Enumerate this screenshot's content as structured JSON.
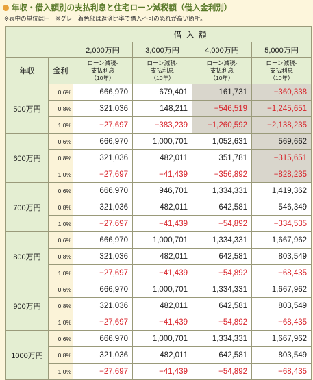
{
  "title": "年収・借入額別の支払利息と住宅ローン減税額（借入金利別）",
  "note": "※表中の単位は円　※グレー着色部は返済比率で借入不可の恐れが高い箇所。",
  "header": {
    "loan_label": "借入額",
    "income_label": "年収",
    "rate_label": "金利",
    "amounts": [
      "2,000万円",
      "3,000万円",
      "4,000万円",
      "5,000万円"
    ],
    "sub_label_1": "ローン減税-",
    "sub_label_2": "支払利息",
    "sub_label_3": "（10年）"
  },
  "rows": [
    {
      "income": "500万円",
      "lines": [
        {
          "rate": "0.6%",
          "values": [
            "666,970",
            "679,401",
            "161,731",
            "−360,338"
          ],
          "neg": [
            false,
            false,
            false,
            true
          ],
          "gray": [
            false,
            false,
            true,
            true
          ]
        },
        {
          "rate": "0.8%",
          "values": [
            "321,036",
            "148,211",
            "−546,519",
            "−1,245,651"
          ],
          "neg": [
            false,
            false,
            true,
            true
          ],
          "gray": [
            false,
            false,
            true,
            true
          ]
        },
        {
          "rate": "1.0%",
          "values": [
            "−27,697",
            "−383,239",
            "−1,260,592",
            "−2,138,235"
          ],
          "neg": [
            true,
            true,
            true,
            true
          ],
          "gray": [
            false,
            false,
            true,
            true
          ]
        }
      ]
    },
    {
      "income": "600万円",
      "lines": [
        {
          "rate": "0.6%",
          "values": [
            "666,970",
            "1,000,701",
            "1,052,631",
            "569,662"
          ],
          "neg": [
            false,
            false,
            false,
            false
          ],
          "gray": [
            false,
            false,
            false,
            true
          ]
        },
        {
          "rate": "0.8%",
          "values": [
            "321,036",
            "482,011",
            "351,781",
            "−315,651"
          ],
          "neg": [
            false,
            false,
            false,
            true
          ],
          "gray": [
            false,
            false,
            false,
            true
          ]
        },
        {
          "rate": "1.0%",
          "values": [
            "−27,697",
            "−41,439",
            "−356,892",
            "−828,235"
          ],
          "neg": [
            true,
            true,
            true,
            true
          ],
          "gray": [
            false,
            false,
            false,
            true
          ]
        }
      ]
    },
    {
      "income": "700万円",
      "lines": [
        {
          "rate": "0.6%",
          "values": [
            "666,970",
            "946,701",
            "1,334,331",
            "1,419,362"
          ],
          "neg": [
            false,
            false,
            false,
            false
          ],
          "gray": [
            false,
            false,
            false,
            false
          ]
        },
        {
          "rate": "0.8%",
          "values": [
            "321,036",
            "482,011",
            "642,581",
            "546,349"
          ],
          "neg": [
            false,
            false,
            false,
            false
          ],
          "gray": [
            false,
            false,
            false,
            false
          ]
        },
        {
          "rate": "1.0%",
          "values": [
            "−27,697",
            "−41,439",
            "−54,892",
            "−334,535"
          ],
          "neg": [
            true,
            true,
            true,
            true
          ],
          "gray": [
            false,
            false,
            false,
            false
          ]
        }
      ]
    },
    {
      "income": "800万円",
      "lines": [
        {
          "rate": "0.6%",
          "values": [
            "666,970",
            "1,000,701",
            "1,334,331",
            "1,667,962"
          ],
          "neg": [
            false,
            false,
            false,
            false
          ],
          "gray": [
            false,
            false,
            false,
            false
          ]
        },
        {
          "rate": "0.8%",
          "values": [
            "321,036",
            "482,011",
            "642,581",
            "803,549"
          ],
          "neg": [
            false,
            false,
            false,
            false
          ],
          "gray": [
            false,
            false,
            false,
            false
          ]
        },
        {
          "rate": "1.0%",
          "values": [
            "−27,697",
            "−41,439",
            "−54,892",
            "−68,435"
          ],
          "neg": [
            true,
            true,
            true,
            true
          ],
          "gray": [
            false,
            false,
            false,
            false
          ]
        }
      ]
    },
    {
      "income": "900万円",
      "lines": [
        {
          "rate": "0.6%",
          "values": [
            "666,970",
            "1,000,701",
            "1,334,331",
            "1,667,962"
          ],
          "neg": [
            false,
            false,
            false,
            false
          ],
          "gray": [
            false,
            false,
            false,
            false
          ]
        },
        {
          "rate": "0.8%",
          "values": [
            "321,036",
            "482,011",
            "642,581",
            "803,549"
          ],
          "neg": [
            false,
            false,
            false,
            false
          ],
          "gray": [
            false,
            false,
            false,
            false
          ]
        },
        {
          "rate": "1.0%",
          "values": [
            "−27,697",
            "−41,439",
            "−54,892",
            "−68,435"
          ],
          "neg": [
            true,
            true,
            true,
            true
          ],
          "gray": [
            false,
            false,
            false,
            false
          ]
        }
      ]
    },
    {
      "income": "1000万円",
      "lines": [
        {
          "rate": "0.6%",
          "values": [
            "666,970",
            "1,000,701",
            "1,334,331",
            "1,667,962"
          ],
          "neg": [
            false,
            false,
            false,
            false
          ],
          "gray": [
            false,
            false,
            false,
            false
          ]
        },
        {
          "rate": "0.8%",
          "values": [
            "321,036",
            "482,011",
            "642,581",
            "803,549"
          ],
          "neg": [
            false,
            false,
            false,
            false
          ],
          "gray": [
            false,
            false,
            false,
            false
          ]
        },
        {
          "rate": "1.0%",
          "values": [
            "−27,697",
            "−41,439",
            "−54,892",
            "−68,435"
          ],
          "neg": [
            true,
            true,
            true,
            true
          ],
          "gray": [
            false,
            false,
            false,
            false
          ]
        }
      ]
    }
  ]
}
